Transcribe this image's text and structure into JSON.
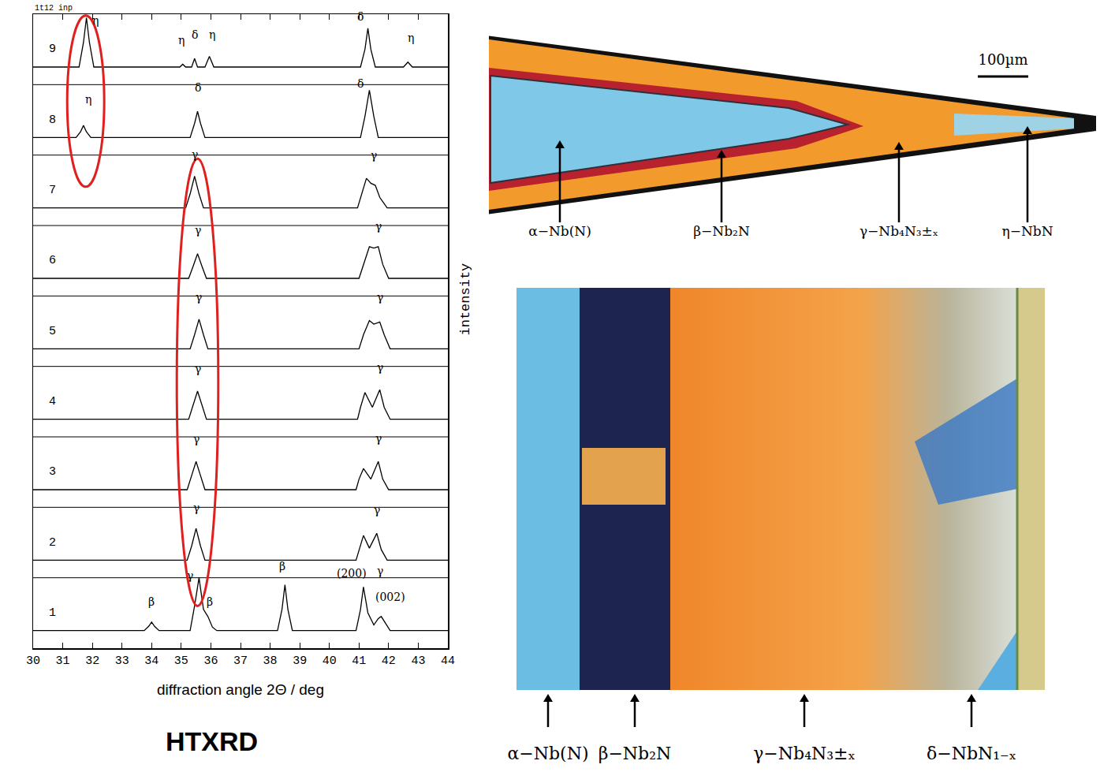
{
  "chart_data": {
    "type": "line",
    "title": "1t12 inp",
    "xlabel": "diffraction angle 2Θ / deg",
    "ylabel": "intensity",
    "caption": "HTXRD",
    "color": "#000000",
    "xlim": [
      30,
      44
    ],
    "xticks": [
      30,
      31,
      32,
      33,
      34,
      35,
      36,
      37,
      38,
      39,
      40,
      41,
      42,
      43,
      44
    ],
    "ylim": [
      0,
      9
    ],
    "tick_labels": "x",
    "grid": false,
    "series": [
      {
        "name": "1",
        "x": [
          30,
          33.75,
          33.9,
          34.0,
          34.1,
          34.25,
          35.3,
          35.45,
          35.6,
          35.75,
          35.9,
          36.05,
          36.2,
          38.25,
          38.4,
          38.5,
          38.6,
          38.75,
          40.9,
          41.05,
          41.15,
          41.3,
          41.5,
          41.65,
          41.75,
          41.9,
          42.05,
          44
        ],
        "values": [
          0.25,
          0.25,
          0.31,
          0.37,
          0.31,
          0.25,
          0.25,
          0.6,
          1.0,
          0.55,
          0.45,
          0.3,
          0.25,
          0.25,
          0.55,
          0.9,
          0.55,
          0.25,
          0.25,
          0.55,
          0.87,
          0.5,
          0.33,
          0.42,
          0.45,
          0.35,
          0.25,
          0.25
        ]
      },
      {
        "name": "2",
        "x": [
          30,
          35.2,
          35.35,
          35.5,
          35.65,
          35.8,
          40.9,
          41.0,
          41.15,
          41.35,
          41.6,
          41.75,
          41.95,
          44
        ],
        "values": [
          1.25,
          1.25,
          1.45,
          1.7,
          1.45,
          1.25,
          1.25,
          1.4,
          1.6,
          1.42,
          1.63,
          1.4,
          1.25,
          1.25
        ]
      },
      {
        "name": "3",
        "x": [
          30,
          35.2,
          35.35,
          35.5,
          35.65,
          35.8,
          40.9,
          41.0,
          41.15,
          41.4,
          41.65,
          41.8,
          42.0,
          44
        ],
        "values": [
          2.25,
          2.25,
          2.45,
          2.65,
          2.45,
          2.25,
          2.25,
          2.4,
          2.55,
          2.4,
          2.65,
          2.4,
          2.25,
          2.25
        ]
      },
      {
        "name": "4",
        "x": [
          30,
          35.25,
          35.4,
          35.55,
          35.7,
          35.85,
          40.95,
          41.05,
          41.2,
          41.45,
          41.7,
          41.85,
          42.05,
          44
        ],
        "values": [
          3.25,
          3.25,
          3.45,
          3.65,
          3.45,
          3.25,
          3.25,
          3.42,
          3.63,
          3.42,
          3.67,
          3.42,
          3.25,
          3.25
        ]
      },
      {
        "name": "5",
        "x": [
          30,
          35.3,
          35.45,
          35.6,
          35.75,
          35.9,
          41.0,
          41.15,
          41.35,
          41.5,
          41.7,
          41.85,
          42.05,
          44
        ],
        "values": [
          4.25,
          4.25,
          4.45,
          4.67,
          4.45,
          4.25,
          4.25,
          4.45,
          4.65,
          4.6,
          4.63,
          4.45,
          4.25,
          4.25
        ]
      },
      {
        "name": "6",
        "x": [
          30,
          35.25,
          35.4,
          35.55,
          35.7,
          35.85,
          41.0,
          41.15,
          41.35,
          41.5,
          41.65,
          41.8,
          42.0,
          44
        ],
        "values": [
          5.25,
          5.25,
          5.42,
          5.6,
          5.42,
          5.25,
          5.25,
          5.45,
          5.7,
          5.68,
          5.7,
          5.45,
          5.25,
          5.25
        ]
      },
      {
        "name": "7",
        "x": [
          30,
          35.15,
          35.3,
          35.45,
          35.6,
          35.75,
          40.95,
          41.1,
          41.25,
          41.4,
          41.55,
          41.7,
          41.95,
          44
        ],
        "values": [
          6.25,
          6.25,
          6.45,
          6.7,
          6.45,
          6.25,
          6.25,
          6.45,
          6.67,
          6.6,
          6.57,
          6.4,
          6.25,
          6.25
        ]
      },
      {
        "name": "8",
        "x": [
          30,
          31.45,
          31.6,
          31.7,
          31.8,
          31.95,
          35.3,
          35.45,
          35.55,
          35.65,
          35.8,
          41.05,
          41.2,
          41.35,
          41.5,
          41.65,
          44
        ],
        "values": [
          7.25,
          7.25,
          7.33,
          7.42,
          7.33,
          7.25,
          7.25,
          7.45,
          7.62,
          7.45,
          7.25,
          7.25,
          7.55,
          7.92,
          7.55,
          7.25,
          7.25
        ]
      },
      {
        "name": "9",
        "x": [
          30,
          31.55,
          31.7,
          31.8,
          31.9,
          32.05,
          34.95,
          35.05,
          35.15,
          35.35,
          35.45,
          35.55,
          35.8,
          35.95,
          36.1,
          41.05,
          41.2,
          41.3,
          41.4,
          41.55,
          42.5,
          42.65,
          42.8,
          44
        ],
        "values": [
          8.25,
          8.25,
          8.6,
          8.95,
          8.6,
          8.25,
          8.25,
          8.29,
          8.25,
          8.25,
          8.37,
          8.25,
          8.25,
          8.4,
          8.25,
          8.25,
          8.5,
          8.8,
          8.5,
          8.25,
          8.25,
          8.32,
          8.25,
          8.25
        ]
      }
    ],
    "annotations": [
      {
        "text": "β",
        "x": 34.0,
        "y": 0.55
      },
      {
        "text": "γ",
        "x": 35.3,
        "y": 0.92
      },
      {
        "text": "β",
        "x": 35.95,
        "y": 0.55
      },
      {
        "text": "β",
        "x": 38.4,
        "y": 1.05
      },
      {
        "text": "(200)",
        "x": 40.75,
        "y": 0.95
      },
      {
        "text": "γ",
        "x": 41.7,
        "y": 0.98
      },
      {
        "text": "(002)",
        "x": 42.05,
        "y": 0.62
      },
      {
        "text": "γ",
        "x": 35.5,
        "y": 1.88
      },
      {
        "text": "γ",
        "x": 41.6,
        "y": 1.85
      },
      {
        "text": "γ",
        "x": 35.5,
        "y": 2.85
      },
      {
        "text": "γ",
        "x": 41.65,
        "y": 2.87
      },
      {
        "text": "γ",
        "x": 35.55,
        "y": 3.85
      },
      {
        "text": "γ",
        "x": 41.7,
        "y": 3.87
      },
      {
        "text": "γ",
        "x": 35.6,
        "y": 4.87
      },
      {
        "text": "γ",
        "x": 41.7,
        "y": 4.87
      },
      {
        "text": "γ",
        "x": 35.55,
        "y": 5.82
      },
      {
        "text": "γ",
        "x": 41.65,
        "y": 5.88
      },
      {
        "text": "γ",
        "x": 35.45,
        "y": 6.9
      },
      {
        "text": "γ",
        "x": 41.5,
        "y": 6.88
      },
      {
        "text": "η",
        "x": 31.85,
        "y": 7.68
      },
      {
        "text": "δ",
        "x": 35.55,
        "y": 7.85
      },
      {
        "text": "δ",
        "x": 41.05,
        "y": 7.9
      },
      {
        "text": "η",
        "x": 32.1,
        "y": 8.8
      },
      {
        "text": "η",
        "x": 35.0,
        "y": 8.52
      },
      {
        "text": "δ",
        "x": 35.45,
        "y": 8.6
      },
      {
        "text": "η",
        "x": 36.05,
        "y": 8.6
      },
      {
        "text": "δ",
        "x": 41.05,
        "y": 8.85
      },
      {
        "text": "η",
        "x": 42.75,
        "y": 8.55
      }
    ],
    "highlights": [
      {
        "x0": 31.15,
        "x1": 32.4,
        "y0": 6.55,
        "y1": 8.98
      },
      {
        "x0": 34.85,
        "x1": 36.25,
        "y0": 0.6,
        "y1": 6.95
      }
    ]
  },
  "micrographs": [
    {
      "scale_bar": "100µm",
      "labels": [
        "α−Nb(N)",
        "β−Nb₂N",
        "γ−Nb₄N₃±ₓ",
        "η−NbN"
      ]
    },
    {
      "labels": [
        "α−Nb(N)",
        "β−Nb₂N",
        "γ−Nb₄N₃±ₓ",
        "δ−NbN₁₋ₓ"
      ]
    }
  ]
}
